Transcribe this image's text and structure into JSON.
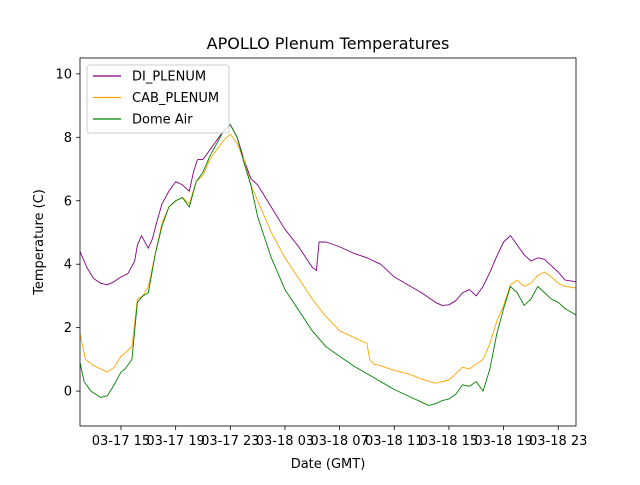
{
  "colors": {
    "background": "#ffffff",
    "di_plenum": "#800080",
    "cab_plenum": "#ffa500",
    "dome_air": "#008000",
    "legend_border": "#cccccc"
  },
  "chart_data": {
    "type": "line",
    "title": "APOLLO Plenum Temperatures",
    "xlabel": "Date (GMT)",
    "ylabel": "Temperature (C)",
    "x_units": "hours since 03-17 12:00 GMT",
    "xlim": [
      0.0,
      36.3
    ],
    "ylim": [
      -1.1,
      10.5
    ],
    "xticks": [
      {
        "x": 3,
        "label": "03-17 15"
      },
      {
        "x": 7,
        "label": "03-17 19"
      },
      {
        "x": 11,
        "label": "03-17 23"
      },
      {
        "x": 15,
        "label": "03-18 03"
      },
      {
        "x": 19,
        "label": "03-18 07"
      },
      {
        "x": 23,
        "label": "03-18 11"
      },
      {
        "x": 27,
        "label": "03-18 15"
      },
      {
        "x": 31,
        "label": "03-18 19"
      },
      {
        "x": 35,
        "label": "03-18 23"
      }
    ],
    "yticks": [
      {
        "y": 0,
        "label": "0"
      },
      {
        "y": 2,
        "label": "2"
      },
      {
        "y": 4,
        "label": "4"
      },
      {
        "y": 6,
        "label": "6"
      },
      {
        "y": 8,
        "label": "8"
      },
      {
        "y": 10,
        "label": "10"
      }
    ],
    "grid": false,
    "legend_position": "upper-left",
    "series": [
      {
        "name": "DI_PLENUM",
        "color": "#800080",
        "x": [
          0,
          0.5,
          1,
          1.5,
          2,
          2.5,
          3,
          3.5,
          4,
          4.2,
          4.5,
          5,
          5.3,
          5.6,
          6,
          6.5,
          7,
          7.5,
          8,
          8.3,
          8.6,
          9,
          9.5,
          10,
          10.5,
          11,
          11.5,
          12,
          12.5,
          13,
          14,
          15,
          16,
          17,
          17.3,
          17.5,
          18,
          19,
          20,
          21,
          22,
          23,
          24,
          25,
          26,
          26.5,
          27,
          27.5,
          28,
          28.5,
          29,
          29.5,
          30,
          30.5,
          31,
          31.5,
          32,
          32.5,
          33,
          33.5,
          34,
          34.5,
          35,
          35.5,
          36.3
        ],
        "y": [
          4.4,
          3.9,
          3.55,
          3.4,
          3.35,
          3.45,
          3.6,
          3.7,
          4.1,
          4.6,
          4.9,
          4.5,
          4.8,
          5.3,
          5.9,
          6.3,
          6.6,
          6.5,
          6.3,
          6.9,
          7.3,
          7.3,
          7.6,
          7.9,
          8.2,
          8.4,
          8.0,
          7.3,
          6.7,
          6.5,
          5.8,
          5.1,
          4.55,
          3.9,
          3.8,
          4.7,
          4.7,
          4.55,
          4.35,
          4.2,
          4.0,
          3.6,
          3.35,
          3.1,
          2.8,
          2.7,
          2.72,
          2.85,
          3.1,
          3.2,
          3.0,
          3.3,
          3.75,
          4.25,
          4.7,
          4.9,
          4.6,
          4.3,
          4.1,
          4.2,
          4.15,
          3.95,
          3.75,
          3.5,
          3.45
        ]
      },
      {
        "name": "CAB_PLENUM",
        "color": "#ffa500",
        "x": [
          0,
          0.4,
          1,
          1.5,
          2,
          2.5,
          3,
          3.3,
          3.8,
          4.2,
          4.6,
          5,
          5.5,
          6,
          6.5,
          7,
          7.5,
          8,
          8.5,
          9,
          9.5,
          10,
          10.5,
          11,
          11.5,
          12,
          12.5,
          13,
          14,
          15,
          16,
          17,
          18,
          19,
          20,
          21,
          21.2,
          21.5,
          22,
          23,
          24,
          25,
          26,
          27,
          27.5,
          28,
          28.5,
          29,
          29.5,
          30,
          30.5,
          31,
          31.5,
          32,
          32.5,
          33,
          33.5,
          34,
          34.5,
          35,
          35.5,
          36.3
        ],
        "y": [
          1.8,
          1.0,
          0.8,
          0.7,
          0.6,
          0.75,
          1.1,
          1.2,
          1.4,
          2.9,
          3.0,
          3.3,
          4.3,
          5.3,
          5.8,
          6.0,
          6.1,
          5.9,
          6.6,
          6.8,
          7.3,
          7.6,
          7.9,
          8.1,
          7.8,
          7.3,
          6.5,
          6.0,
          5.0,
          4.2,
          3.55,
          2.9,
          2.35,
          1.9,
          1.7,
          1.5,
          1.0,
          0.85,
          0.8,
          0.65,
          0.55,
          0.38,
          0.25,
          0.35,
          0.55,
          0.75,
          0.7,
          0.85,
          1.0,
          1.5,
          2.2,
          2.7,
          3.35,
          3.5,
          3.3,
          3.4,
          3.65,
          3.75,
          3.6,
          3.4,
          3.3,
          3.25
        ]
      },
      {
        "name": "Dome Air",
        "color": "#008000",
        "x": [
          0,
          0.3,
          0.8,
          1.5,
          2,
          2.5,
          3,
          3.3,
          3.8,
          4.2,
          4.6,
          5,
          5.5,
          6,
          6.5,
          7,
          7.5,
          8,
          8.5,
          9,
          9.5,
          10,
          10.5,
          11,
          11.5,
          12,
          12.5,
          13,
          14,
          15,
          16,
          17,
          18,
          19,
          20,
          21,
          22,
          23,
          24,
          25,
          25.5,
          26,
          26.5,
          27,
          27.5,
          28,
          28.5,
          29,
          29.5,
          30,
          30.5,
          31,
          31.5,
          32,
          32.5,
          33,
          33.5,
          34,
          34.5,
          35,
          35.5,
          36.3
        ],
        "y": [
          0.9,
          0.3,
          0.0,
          -0.2,
          -0.15,
          0.2,
          0.6,
          0.7,
          1.0,
          2.8,
          3.0,
          3.1,
          4.3,
          5.2,
          5.8,
          6.0,
          6.1,
          5.8,
          6.6,
          6.9,
          7.4,
          7.8,
          8.2,
          8.4,
          8.0,
          7.2,
          6.5,
          5.5,
          4.2,
          3.2,
          2.55,
          1.9,
          1.4,
          1.1,
          0.8,
          0.55,
          0.3,
          0.05,
          -0.15,
          -0.35,
          -0.45,
          -0.4,
          -0.3,
          -0.25,
          -0.1,
          0.2,
          0.15,
          0.3,
          0.0,
          0.7,
          1.8,
          2.6,
          3.3,
          3.1,
          2.7,
          2.9,
          3.3,
          3.1,
          2.9,
          2.8,
          2.6,
          2.4
        ]
      }
    ]
  }
}
